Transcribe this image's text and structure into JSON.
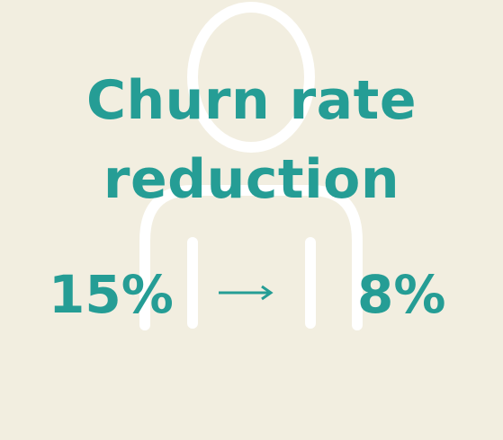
{
  "colors": {
    "background": "#f2eee0",
    "text": "#259d95",
    "icon": "#ffffff"
  },
  "icons": {
    "figure": "person-outline-icon",
    "change": "right-arrow-icon"
  },
  "headline": {
    "line1": "Churn rate",
    "line2": "reduction"
  },
  "metric": {
    "before": "15%",
    "after": "8%"
  }
}
